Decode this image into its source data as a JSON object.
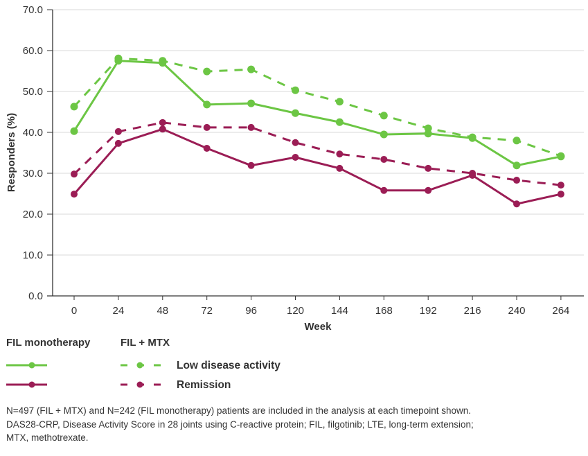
{
  "chart_data": {
    "type": "line",
    "title": "",
    "xlabel": "Week",
    "ylabel": "Responders (%)",
    "x": [
      0,
      24,
      48,
      72,
      96,
      120,
      144,
      168,
      192,
      216,
      240,
      264
    ],
    "x_tick_labels": [
      "0",
      "24",
      "48",
      "72",
      "96",
      "120",
      "144",
      "168",
      "192",
      "216",
      "240",
      "264"
    ],
    "y_tick_labels": [
      "0.0",
      "10.0",
      "20.0",
      "30.0",
      "40.0",
      "50.0",
      "60.0",
      "70.0"
    ],
    "ylim": [
      0,
      70
    ],
    "y_ticks": [
      0,
      10,
      20,
      30,
      40,
      50,
      60,
      70
    ],
    "grid": "horizontal",
    "legend_position": "bottom",
    "series": [
      {
        "name": "FIL + MTX Low disease activity",
        "color": "#6cc644",
        "style": "dashed",
        "values": [
          46.3,
          58.1,
          57.5,
          54.9,
          55.4,
          50.3,
          47.5,
          44.1,
          41.0,
          38.8,
          38.0,
          34.2
        ]
      },
      {
        "name": "FIL monotherapy Low disease activity",
        "color": "#6cc644",
        "style": "solid",
        "values": [
          40.3,
          57.5,
          57.0,
          46.8,
          47.1,
          44.7,
          42.5,
          39.5,
          39.7,
          38.6,
          31.9,
          34.1
        ]
      },
      {
        "name": "FIL + MTX Remission",
        "color": "#9b1d55",
        "style": "dashed",
        "values": [
          29.8,
          40.2,
          42.4,
          41.2,
          41.2,
          37.5,
          34.7,
          33.4,
          31.2,
          30.0,
          28.3,
          27.1
        ]
      },
      {
        "name": "FIL monotherapy Remission",
        "color": "#9b1d55",
        "style": "solid",
        "values": [
          24.9,
          37.3,
          40.8,
          36.1,
          31.9,
          33.9,
          31.2,
          25.8,
          25.8,
          29.5,
          22.5,
          24.9
        ]
      }
    ]
  },
  "legend": {
    "group_mono": "FIL monotherapy",
    "group_mtx": "FIL + MTX",
    "row_lda": "Low disease activity",
    "row_remission": "Remission",
    "green": "#6cc644",
    "magenta": "#9b1d55"
  },
  "footnote": {
    "line1": "N=497 (FIL + MTX) and N=242 (FIL monotherapy) patients are included in the analysis at each timepoint shown.",
    "line2": "DAS28-CRP, Disease Activity Score in 28 joints using C-reactive protein; FIL, filgotinib; LTE, long-term extension;",
    "line3": "MTX, methotrexate."
  }
}
